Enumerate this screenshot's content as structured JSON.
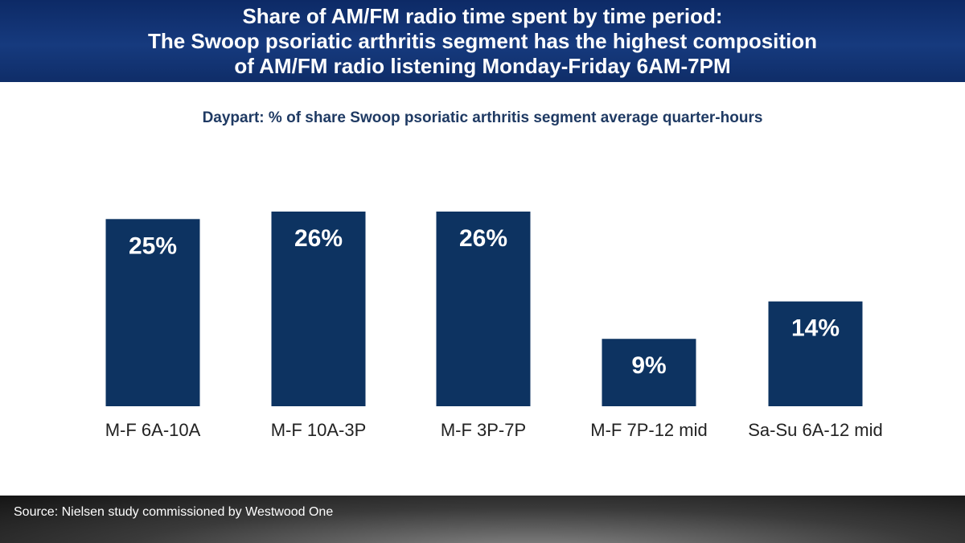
{
  "header": {
    "line1": "Share of AM/FM radio time spent by time period:",
    "line2": "The Swoop psoriatic arthritis segment has the highest composition",
    "line3": "of AM/FM radio listening Monday-Friday 6AM-7PM"
  },
  "footer": {
    "source": "Source: Nielsen study commissioned by Westwood One"
  },
  "chart_data": {
    "type": "bar",
    "title": "Daypart: % of share Swoop psoriatic arthritis segment average quarter-hours",
    "categories": [
      "M-F 6A-10A",
      "M-F 10A-3P",
      "M-F 3P-7P",
      "M-F 7P-12 mid",
      "Sa-Su 6A-12 mid"
    ],
    "values": [
      25,
      26,
      26,
      9,
      14
    ],
    "value_labels": [
      "25%",
      "26%",
      "26%",
      "9%",
      "14%"
    ],
    "ylim": [
      0,
      26
    ],
    "bar_color": "#0d3361",
    "grid": false,
    "legend": "none"
  }
}
